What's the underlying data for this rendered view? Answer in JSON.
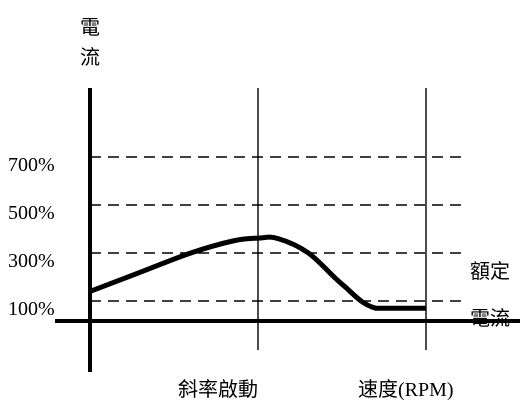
{
  "chart_data": {
    "type": "line",
    "ylabel": "電流",
    "y_ticks": [
      {
        "label": "700%",
        "value": 700
      },
      {
        "label": "500%",
        "value": 500
      },
      {
        "label": "300%",
        "value": 300
      },
      {
        "label": "100%",
        "value": 100
      }
    ],
    "ylim": [
      -100,
      800
    ],
    "x_markers": [
      {
        "label": "斜率啟動",
        "value": 1.0
      },
      {
        "label": "速度(RPM)",
        "value": 2.0
      }
    ],
    "xlim": [
      0,
      2.0
    ],
    "reference_label_line1": "額定",
    "reference_label_line2": "電流",
    "grid": "dashed horizontal at y ticks",
    "series": [
      {
        "x": [
          0,
          0.3,
          0.6,
          0.85,
          1.0,
          1.12,
          1.3,
          1.5,
          1.7,
          2.0
        ],
        "y": [
          140,
          220,
          300,
          350,
          362,
          360,
          300,
          170,
          70,
          70
        ]
      }
    ]
  }
}
